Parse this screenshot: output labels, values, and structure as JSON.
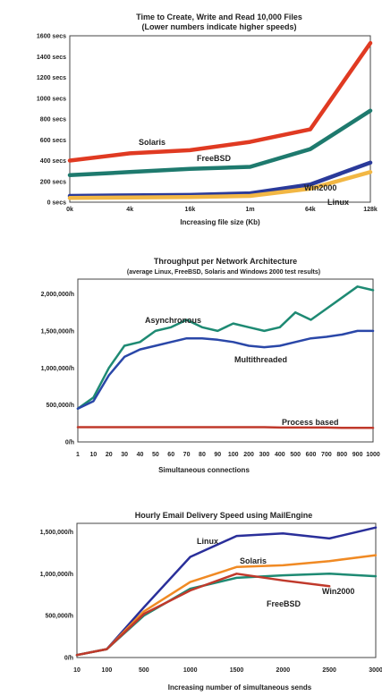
{
  "chart_data": [
    {
      "type": "line",
      "title": "Time to Create, Write and Read 10,000 Files",
      "subtitle": "(Lower numbers indicate higher speeds)",
      "xlabel": "Increasing file size (Kb)",
      "ylabel": "",
      "categories": [
        "0k",
        "4k",
        "16k",
        "1m",
        "64k",
        "128k"
      ],
      "yticks": [
        "0 secs",
        "200 secs",
        "400 secs",
        "600 secs",
        "800 secs",
        "1000 secs",
        "1200 secs",
        "1400 secs",
        "1600 secs"
      ],
      "ylim": [
        0,
        1600
      ],
      "grid": false,
      "series": [
        {
          "name": "Solaris",
          "color": "#e03a22",
          "values": [
            400,
            470,
            500,
            580,
            700,
            1530
          ]
        },
        {
          "name": "FreeBSD",
          "color": "#1e7a6e",
          "values": [
            260,
            290,
            320,
            340,
            510,
            880
          ]
        },
        {
          "name": "Win2000",
          "color": "#2a3a9a",
          "values": [
            60,
            65,
            70,
            85,
            170,
            380
          ]
        },
        {
          "name": "Linux",
          "color": "#f2b744",
          "values": [
            40,
            45,
            50,
            60,
            130,
            290
          ]
        }
      ]
    },
    {
      "type": "line",
      "title": "Throughput per Network Architecture",
      "subtitle": "(average Linux, FreeBSD, Solaris and Windows 2000 test results)",
      "xlabel": "Simultaneous connections",
      "ylabel": "",
      "categories": [
        "1",
        "10",
        "20",
        "30",
        "40",
        "50",
        "60",
        "70",
        "80",
        "90",
        "100",
        "200",
        "300",
        "400",
        "500",
        "600",
        "700",
        "800",
        "900",
        "1000"
      ],
      "tick_labels": [
        "1",
        "10",
        "20",
        "30",
        "40",
        "50",
        "60",
        "70",
        "80",
        "90",
        "100",
        "200",
        "300",
        "400",
        "500",
        "600",
        "700",
        "800",
        "900",
        "1000"
      ],
      "yticks": [
        "0/h",
        "500,000/h",
        "1,000,000/h",
        "1,500,000/h",
        "2,000,000/h"
      ],
      "ylim": [
        0,
        2200000
      ],
      "grid": false,
      "series": [
        {
          "name": "Asynchronous",
          "color": "#1e8a73",
          "values": [
            450000,
            600000,
            1000000,
            1300000,
            1350000,
            1500000,
            1550000,
            1650000,
            1550000,
            1500000,
            1600000,
            1550000,
            1500000,
            1550000,
            1750000,
            1650000,
            1800000,
            1950000,
            2100000,
            2050000
          ]
        },
        {
          "name": "Multithreaded",
          "color": "#2a47a8",
          "values": [
            450000,
            550000,
            900000,
            1150000,
            1250000,
            1300000,
            1350000,
            1400000,
            1400000,
            1380000,
            1350000,
            1300000,
            1280000,
            1300000,
            1350000,
            1400000,
            1420000,
            1450000,
            1500000,
            1500000
          ]
        },
        {
          "name": "Process based",
          "color": "#c0392b",
          "values": [
            200000,
            200000,
            200000,
            200000,
            200000,
            200000,
            200000,
            200000,
            200000,
            200000,
            200000,
            200000,
            200000,
            195000,
            195000,
            195000,
            195000,
            190000,
            190000,
            190000
          ]
        }
      ]
    },
    {
      "type": "line",
      "title": "Hourly Email Delivery Speed using MailEngine",
      "xlabel": "Increasing number of simultaneous sends",
      "ylabel": "",
      "x": [
        10,
        100,
        500,
        1000,
        1500,
        2000,
        2500,
        3000
      ],
      "tick_labels": [
        "10",
        "100",
        "500",
        "1000",
        "1500",
        "2000",
        "2500",
        "3000"
      ],
      "yticks": [
        "0/h",
        "500,000/h",
        "1,000,000/h",
        "1,500,000/h"
      ],
      "ylim": [
        0,
        1600000
      ],
      "grid": false,
      "series": [
        {
          "name": "Linux",
          "color": "#2a2f9a",
          "values": [
            30000,
            100000,
            600000,
            1200000,
            1450000,
            1480000,
            1420000,
            1550000
          ]
        },
        {
          "name": "Solaris",
          "color": "#f08a24",
          "values": [
            30000,
            100000,
            550000,
            900000,
            1080000,
            1100000,
            1150000,
            1220000
          ]
        },
        {
          "name": "FreeBSD",
          "color": "#1e8a73",
          "values": [
            30000,
            100000,
            500000,
            820000,
            950000,
            980000,
            1000000,
            970000
          ]
        },
        {
          "name": "Win2000",
          "color": "#c0392b",
          "values": [
            30000,
            100000,
            520000,
            800000,
            1000000,
            920000,
            850000,
            null
          ]
        }
      ]
    }
  ]
}
